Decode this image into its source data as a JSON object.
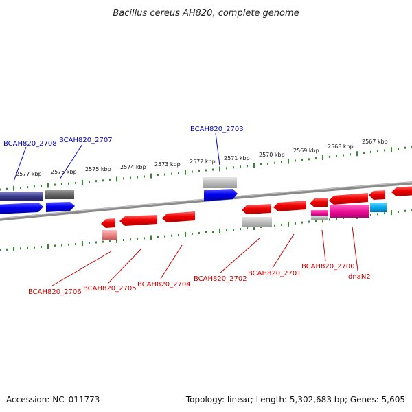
{
  "title": "Bacillus cereus AH820, complete genome",
  "footer": {
    "accession": "Accession: NC_011773",
    "topology": "Topology: linear; Length: 5,302,683 bp; Genes: 5,605"
  },
  "colors": {
    "backbone": "#8a8a8a",
    "ticks": "#2e8b2e",
    "label_blue": "#0000cc",
    "label_red": "#cc0000",
    "gene_red": "#ee0000",
    "gene_blue": "#0000ee",
    "gene_navy": "#3a3a8c",
    "gene_dark_gray": "#666666",
    "gene_light_gray": "#bdbdbd",
    "gene_magenta": "#ee1199",
    "gene_cyan": "#00aaee",
    "gene_pink": "#ee8888"
  },
  "ruler": {
    "unit": "kbp",
    "ticks": [
      "2577 kbp",
      "2576 kbp",
      "2575 kbp",
      "2574 kbp",
      "2573 kbp",
      "2572 kbp",
      "2571 kbp",
      "2570 kbp",
      "2569 kbp",
      "2568 kbp",
      "2567 kbp"
    ]
  },
  "gene_labels": [
    {
      "text": "BCAH820_2708",
      "color": "blue"
    },
    {
      "text": "BCAH820_2707",
      "color": "blue"
    },
    {
      "text": "BCAH820_2703",
      "color": "blue"
    },
    {
      "text": "BCAH820_2706",
      "color": "red"
    },
    {
      "text": "BCAH820_2705",
      "color": "red"
    },
    {
      "text": "BCAH820_2704",
      "color": "red"
    },
    {
      "text": "BCAH820_2702",
      "color": "red"
    },
    {
      "text": "BCAH820_2701",
      "color": "red"
    },
    {
      "text": "BCAH820_2700",
      "color": "red"
    },
    {
      "text": "dnaN2",
      "color": "red"
    }
  ]
}
